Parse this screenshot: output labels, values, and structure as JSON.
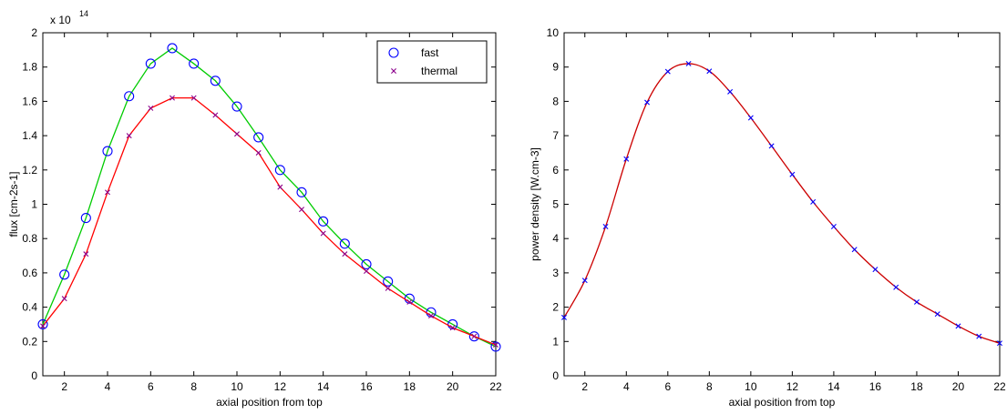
{
  "chart_data": [
    {
      "type": "line",
      "xlabel": "axial position from top",
      "ylabel": "flux [cm-2s-1]",
      "exponent_label": "x 10",
      "exponent_power": "14",
      "xlim": [
        1,
        22
      ],
      "ylim": [
        0,
        2
      ],
      "xticks": [
        2,
        4,
        6,
        8,
        10,
        12,
        14,
        16,
        18,
        20,
        22
      ],
      "yticks": [
        0,
        0.2,
        0.4,
        0.6,
        0.8,
        1,
        1.2,
        1.4,
        1.6,
        1.8,
        2
      ],
      "grid": false,
      "legend_position": "top-right",
      "x": [
        1,
        2,
        3,
        4,
        5,
        6,
        7,
        8,
        9,
        10,
        11,
        12,
        13,
        14,
        15,
        16,
        17,
        18,
        19,
        20,
        21,
        22
      ],
      "series": [
        {
          "name": "fast",
          "marker": "circle",
          "marker_color": "#0000ff",
          "line_color": "#00cc00",
          "values": [
            0.3,
            0.59,
            0.92,
            1.31,
            1.63,
            1.82,
            1.91,
            1.82,
            1.72,
            1.57,
            1.39,
            1.2,
            1.07,
            0.9,
            0.77,
            0.65,
            0.55,
            0.45,
            0.37,
            0.3,
            0.23,
            0.17
          ]
        },
        {
          "name": "thermal",
          "marker": "x",
          "marker_color": "#8b008b",
          "line_color": "#ff0000",
          "values": [
            0.29,
            0.45,
            0.71,
            1.07,
            1.4,
            1.56,
            1.62,
            1.62,
            1.52,
            1.41,
            1.3,
            1.1,
            0.97,
            0.83,
            0.71,
            0.61,
            0.51,
            0.43,
            0.35,
            0.28,
            0.23,
            0.18
          ]
        }
      ]
    },
    {
      "type": "line",
      "xlabel": "axial position from top",
      "ylabel": "power density [W.cm-3]",
      "xlim": [
        1,
        22
      ],
      "ylim": [
        0,
        10
      ],
      "xticks": [
        2,
        4,
        6,
        8,
        10,
        12,
        14,
        16,
        18,
        20,
        22
      ],
      "yticks": [
        0,
        1,
        2,
        3,
        4,
        5,
        6,
        7,
        8,
        9,
        10
      ],
      "grid": false,
      "x": [
        1,
        2,
        3,
        4,
        5,
        6,
        7,
        8,
        9,
        10,
        11,
        12,
        13,
        14,
        15,
        16,
        17,
        18,
        19,
        20,
        21,
        22
      ],
      "series": [
        {
          "marker": "x",
          "marker_color": "#0000ff",
          "line_color": "#cc0000",
          "values": [
            1.7,
            2.78,
            4.35,
            6.32,
            7.97,
            8.87,
            9.1,
            8.88,
            8.28,
            7.52,
            6.7,
            5.87,
            5.07,
            4.35,
            3.68,
            3.1,
            2.58,
            2.15,
            1.8,
            1.45,
            1.15,
            0.95
          ]
        }
      ]
    }
  ]
}
